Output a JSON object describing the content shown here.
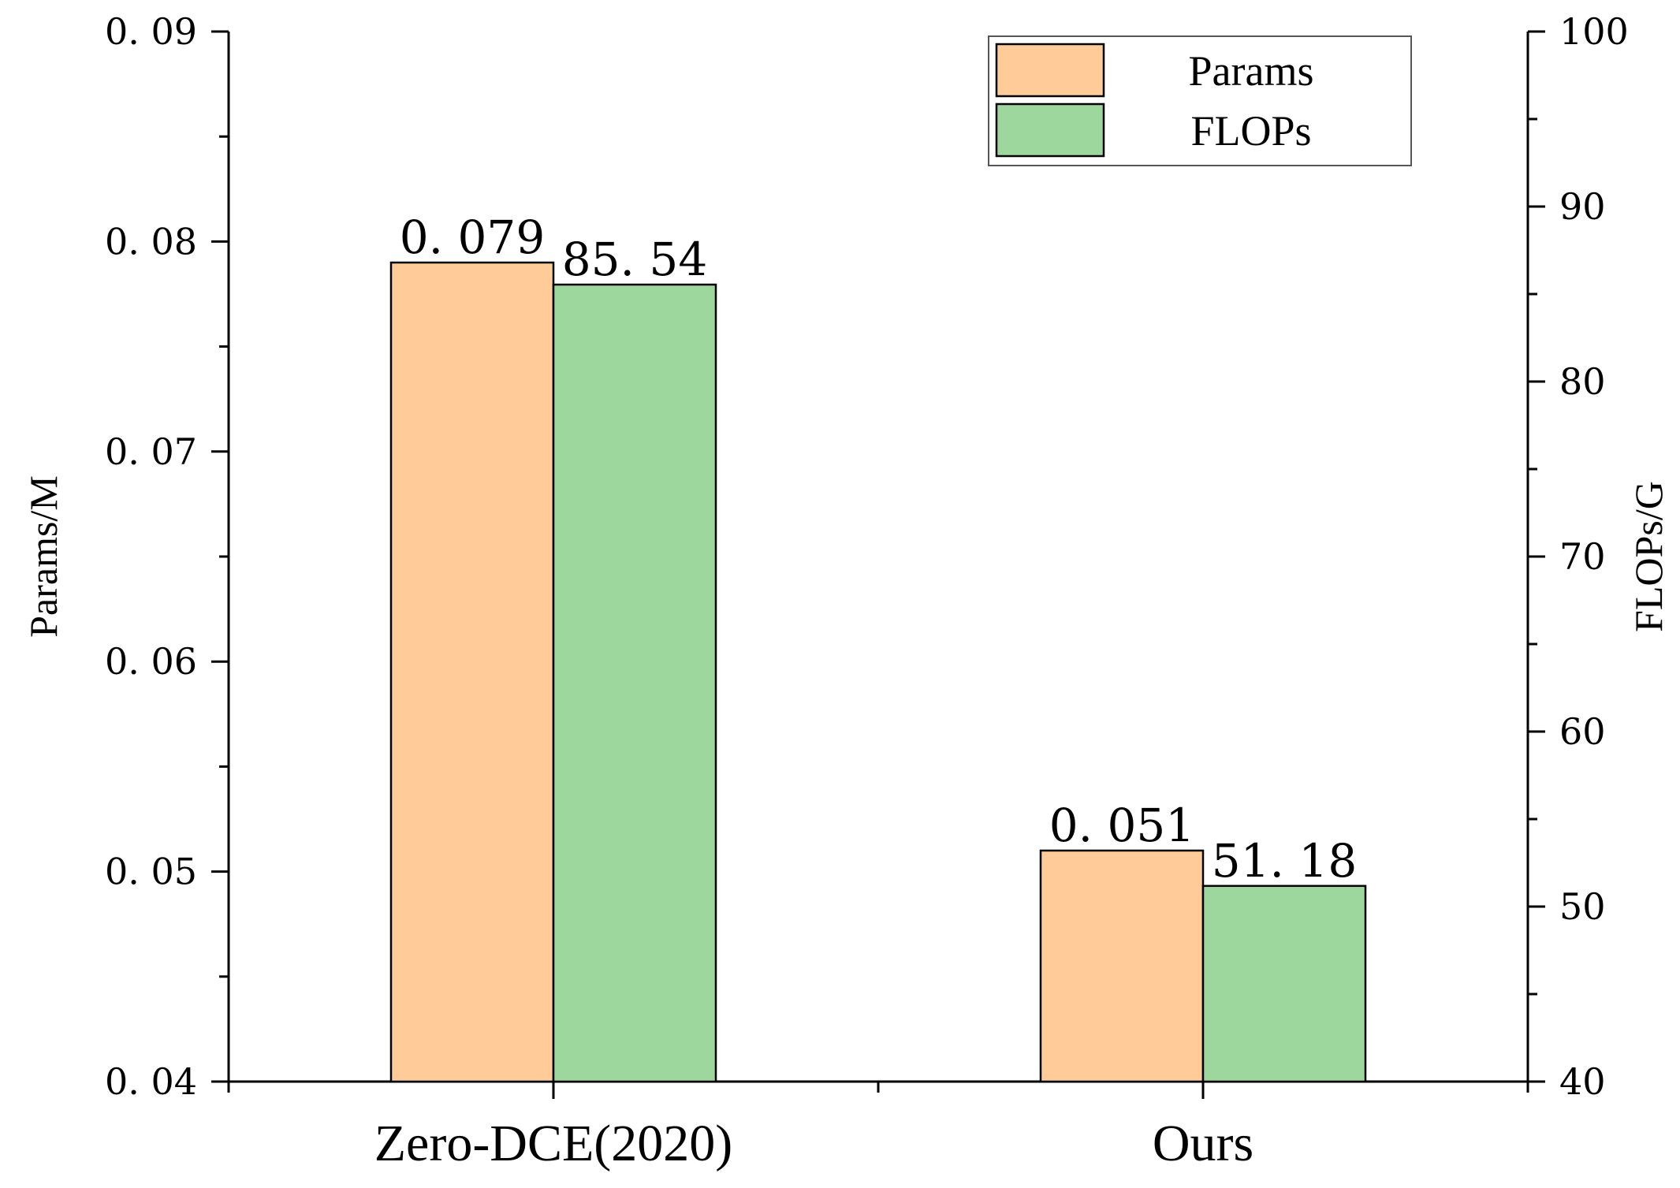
{
  "chart_data": {
    "type": "bar",
    "categories": [
      "Zero-DCE(2020)",
      "Ours"
    ],
    "series": [
      {
        "name": "Params",
        "axis": "left",
        "color": "#FFCC99",
        "values": [
          0.079,
          0.051
        ],
        "labels": [
          "0. 079",
          "0. 051"
        ]
      },
      {
        "name": "FLOPs",
        "axis": "right",
        "color": "#9DD79D",
        "values": [
          85.54,
          51.18
        ],
        "labels": [
          "85. 54",
          "51. 18"
        ]
      }
    ],
    "ylabel": "Params/M",
    "y2label": "FLOPs/G",
    "ylim": [
      0.04,
      0.09
    ],
    "y2lim": [
      40,
      100
    ],
    "yticks": [
      0.04,
      0.05,
      0.06,
      0.07,
      0.08,
      0.09
    ],
    "ytick_labels": [
      "0. 04",
      "0. 05",
      "0. 06",
      "0. 07",
      "0. 08",
      "0. 09"
    ],
    "y2ticks": [
      40,
      50,
      60,
      70,
      80,
      90,
      100
    ],
    "y2tick_labels": [
      "40",
      "50",
      "60",
      "70",
      "80",
      "90",
      "100"
    ],
    "legend_position": "top-right",
    "grid": false
  }
}
